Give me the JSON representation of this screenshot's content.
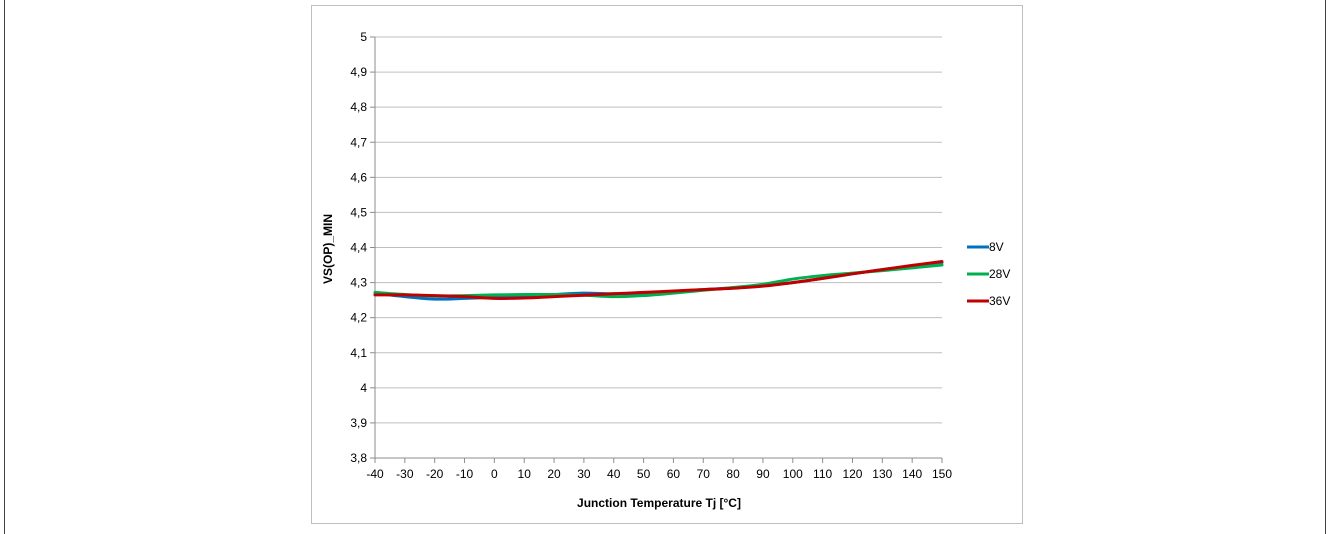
{
  "chart_data": {
    "type": "line",
    "title": "",
    "xlabel": "Junction Temperature Tj [°C]",
    "ylabel": "VS(OP)_MIN",
    "xlim": [
      -40,
      150
    ],
    "ylim": [
      3.8,
      5
    ],
    "x_ticks": [
      -40,
      -30,
      -20,
      -10,
      0,
      10,
      20,
      30,
      40,
      50,
      60,
      70,
      80,
      90,
      100,
      110,
      120,
      130,
      140,
      150
    ],
    "x_tick_labels": [
      "-40",
      "-30",
      "-20",
      "-10",
      "0",
      "10",
      "20",
      "30",
      "40",
      "50",
      "60",
      "70",
      "80",
      "90",
      "100",
      "110",
      "120",
      "130",
      "140",
      "150"
    ],
    "y_ticks": [
      3.8,
      3.9,
      4,
      4.1,
      4.2,
      4.3,
      4.4,
      4.5,
      4.6,
      4.7,
      4.8,
      4.9,
      5
    ],
    "y_tick_labels": [
      "3,8",
      "3,9",
      "4",
      "4,1",
      "4,2",
      "4,3",
      "4,4",
      "4,5",
      "4,6",
      "4,7",
      "4,8",
      "4,9",
      "5"
    ],
    "grid": true,
    "legend_position": "right",
    "series": [
      {
        "name": "8V",
        "color": "#0070C0",
        "x": [
          -40,
          -30,
          -20,
          -10,
          0,
          10,
          20,
          30,
          40,
          50,
          60,
          70,
          80,
          90,
          100,
          110,
          120,
          130,
          140,
          150
        ],
        "y": [
          4.27,
          4.26,
          4.253,
          4.255,
          4.258,
          4.262,
          4.266,
          4.27,
          4.268,
          4.27,
          4.275,
          4.28,
          4.285,
          4.292,
          4.3,
          4.312,
          4.325,
          4.337,
          4.347,
          4.357
        ]
      },
      {
        "name": "28V",
        "color": "#00B050",
        "x": [
          -40,
          -30,
          -20,
          -10,
          0,
          10,
          20,
          30,
          40,
          50,
          60,
          70,
          80,
          90,
          100,
          110,
          120,
          130,
          140,
          150
        ],
        "y": [
          4.272,
          4.266,
          4.262,
          4.263,
          4.265,
          4.266,
          4.266,
          4.264,
          4.26,
          4.263,
          4.27,
          4.278,
          4.286,
          4.295,
          4.31,
          4.32,
          4.327,
          4.334,
          4.342,
          4.35
        ]
      },
      {
        "name": "36V",
        "color": "#C00000",
        "x": [
          -40,
          -30,
          -20,
          -10,
          0,
          10,
          20,
          30,
          40,
          50,
          60,
          70,
          80,
          90,
          100,
          110,
          120,
          130,
          140,
          150
        ],
        "y": [
          4.265,
          4.265,
          4.263,
          4.26,
          4.255,
          4.256,
          4.26,
          4.264,
          4.268,
          4.272,
          4.276,
          4.28,
          4.284,
          4.29,
          4.3,
          4.312,
          4.325,
          4.337,
          4.349,
          4.36
        ]
      }
    ]
  }
}
